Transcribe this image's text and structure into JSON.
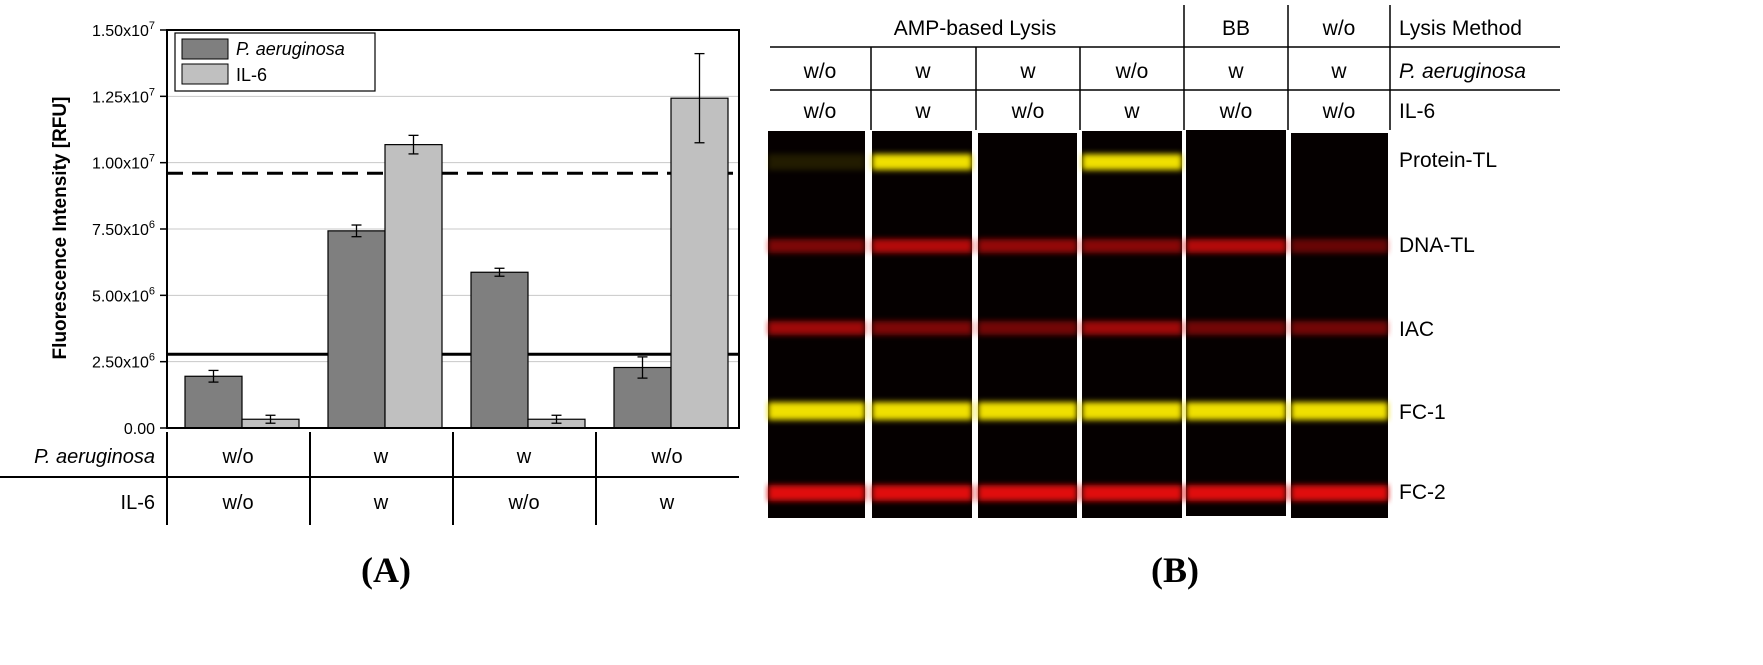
{
  "panel_a": {
    "label": "(A)",
    "chart_data": {
      "type": "bar",
      "ylabel": "Fluorescence Intensity [RFU]",
      "ylim": [
        0,
        15000000
      ],
      "yticks": [
        {
          "value": 0,
          "label": "0.00",
          "exp": ""
        },
        {
          "value": 2500000,
          "label": "2.50x10",
          "exp": "6"
        },
        {
          "value": 5000000,
          "label": "5.00x10",
          "exp": "6"
        },
        {
          "value": 7500000,
          "label": "7.50x10",
          "exp": "6"
        },
        {
          "value": 10000000,
          "label": "1.00x10",
          "exp": "7"
        },
        {
          "value": 12500000,
          "label": "1.25x10",
          "exp": "7"
        },
        {
          "value": 15000000,
          "label": "1.50x10",
          "exp": "7"
        }
      ],
      "grid": true,
      "legend_position": "top-left",
      "series": [
        {
          "name": "P. aeruginosa",
          "color": "#7f7f7f",
          "values": [
            1950000,
            7430000,
            5870000,
            2280000
          ],
          "errors": [
            220000,
            220000,
            150000,
            400000
          ]
        },
        {
          "name": "IL-6",
          "color": "#c0c0c0",
          "values": [
            330000,
            10680000,
            330000,
            12430000
          ],
          "errors": [
            150000,
            350000,
            150000,
            1680000
          ]
        }
      ],
      "reference_lines": [
        {
          "value": 9600000,
          "style": "dashed"
        },
        {
          "value": 2780000,
          "style": "solid"
        }
      ],
      "condition_table": {
        "rows": [
          {
            "label": "P. aeruginosa",
            "values": [
              "w/o",
              "w",
              "w",
              "w/o"
            ]
          },
          {
            "label": "IL-6",
            "values": [
              "w/o",
              "w",
              "w/o",
              "w"
            ]
          }
        ]
      }
    }
  },
  "panel_b": {
    "label": "(B)",
    "header": {
      "method_groups": [
        {
          "text": "AMP-based Lysis",
          "span": 4
        },
        {
          "text": "BB",
          "span": 1
        },
        {
          "text": "w/o",
          "span": 1
        }
      ],
      "row_labels": [
        "Lysis Method",
        "P. aeruginosa",
        "IL-6"
      ],
      "pa_values": [
        "w/o",
        "w",
        "w",
        "w/o",
        "w",
        "w"
      ],
      "il6_values": [
        "w/o",
        "w",
        "w/o",
        "w",
        "w/o",
        "w/o"
      ]
    },
    "band_labels": [
      "Protein-TL",
      "DNA-TL",
      "IAC",
      "FC-1",
      "FC-2"
    ],
    "band_colors": {
      "yellow": "#f0e000",
      "red": "#e01010",
      "dim_red": "#8a1010"
    },
    "strips": [
      {
        "bands": [
          0.12,
          0.55,
          0.7,
          1.0,
          1.0
        ]
      },
      {
        "bands": [
          1.0,
          0.8,
          0.55,
          1.0,
          1.0
        ]
      },
      {
        "bands": [
          0.0,
          0.65,
          0.5,
          1.0,
          1.0
        ]
      },
      {
        "bands": [
          1.0,
          0.6,
          0.7,
          1.0,
          1.0
        ]
      },
      {
        "bands": [
          0.0,
          0.8,
          0.5,
          1.0,
          1.0
        ]
      },
      {
        "bands": [
          0.0,
          0.45,
          0.5,
          1.0,
          1.0
        ]
      }
    ]
  }
}
